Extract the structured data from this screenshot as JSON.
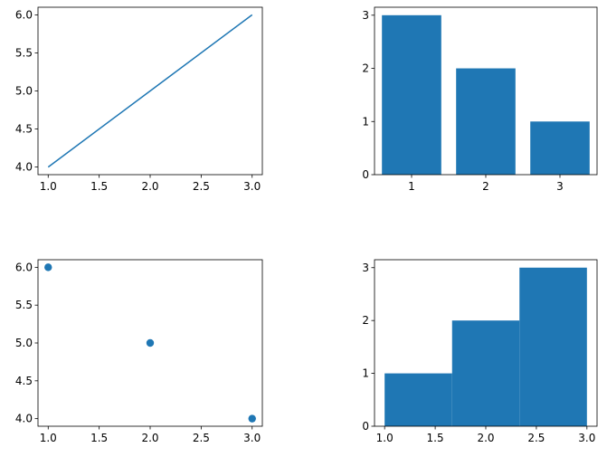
{
  "chart_data": [
    {
      "type": "line",
      "x": [
        1,
        2,
        3
      ],
      "values": [
        4,
        5,
        6
      ],
      "color": "#1f77b4",
      "xlim": [
        0.9,
        3.1
      ],
      "ylim": [
        3.9,
        6.1
      ],
      "xticks": [
        {
          "value": 1,
          "label": "1.0"
        },
        {
          "value": 1.5,
          "label": "1.5"
        },
        {
          "value": 2,
          "label": "2.0"
        },
        {
          "value": 2.5,
          "label": "2.5"
        },
        {
          "value": 3,
          "label": "3.0"
        }
      ],
      "yticks": [
        {
          "value": 4,
          "label": "4.0"
        },
        {
          "value": 4.5,
          "label": "4.5"
        },
        {
          "value": 5,
          "label": "5.0"
        },
        {
          "value": 5.5,
          "label": "5.5"
        },
        {
          "value": 6,
          "label": "6.0"
        }
      ]
    },
    {
      "type": "bar",
      "x": [
        1,
        2,
        3
      ],
      "values": [
        3,
        2,
        1
      ],
      "color": "#1f77b4",
      "xlim": [
        0.5,
        3.5
      ],
      "ylim": [
        0,
        3.15
      ],
      "xticks": [
        1,
        2,
        3
      ],
      "yticks": [
        0,
        1,
        2,
        3
      ]
    },
    {
      "type": "scatter",
      "x": [
        1,
        2,
        3
      ],
      "values": [
        6,
        5,
        4
      ],
      "color": "#1f77b4",
      "xlim": [
        0.9,
        3.1
      ],
      "ylim": [
        3.9,
        6.1
      ],
      "xticks": [
        {
          "value": 1,
          "label": "1.0"
        },
        {
          "value": 1.5,
          "label": "1.5"
        },
        {
          "value": 2,
          "label": "2.0"
        },
        {
          "value": 2.5,
          "label": "2.5"
        },
        {
          "value": 3,
          "label": "3.0"
        }
      ],
      "yticks": [
        {
          "value": 4,
          "label": "4.0"
        },
        {
          "value": 4.5,
          "label": "4.5"
        },
        {
          "value": 5,
          "label": "5.0"
        },
        {
          "value": 5.5,
          "label": "5.5"
        },
        {
          "value": 6,
          "label": "6.0"
        }
      ]
    },
    {
      "type": "histogram",
      "bins": [
        1,
        1.667,
        2.333,
        3
      ],
      "values": [
        1,
        2,
        3
      ],
      "color": "#1f77b4",
      "xlim": [
        0.9,
        3.1
      ],
      "ylim": [
        0,
        3.15
      ],
      "xticks": [
        {
          "value": 1,
          "label": "1.0"
        },
        {
          "value": 1.5,
          "label": "1.5"
        },
        {
          "value": 2,
          "label": "2.0"
        },
        {
          "value": 2.5,
          "label": "2.5"
        },
        {
          "value": 3,
          "label": "3.0"
        }
      ],
      "yticks": [
        0,
        1,
        2,
        3
      ]
    }
  ]
}
